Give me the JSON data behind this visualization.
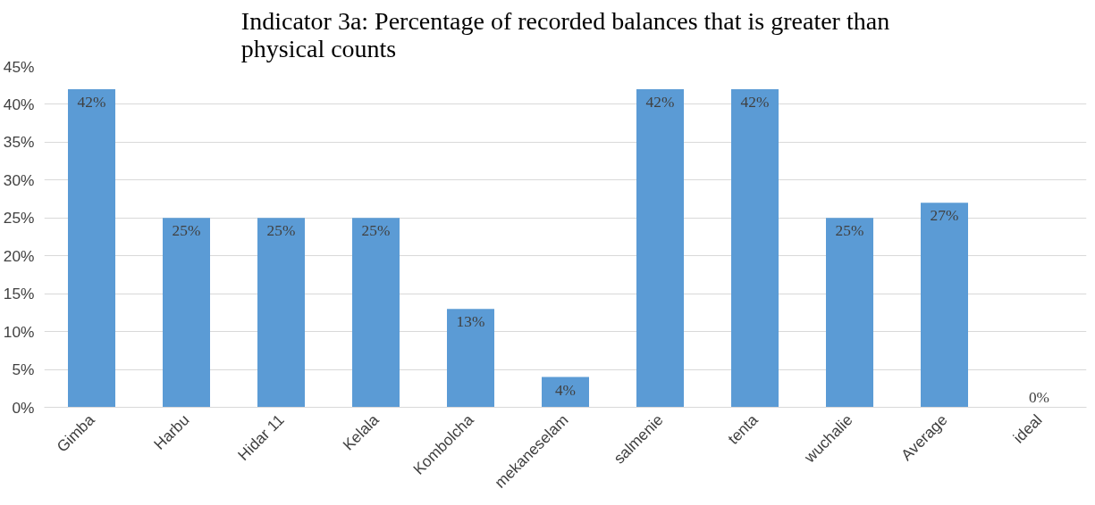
{
  "chart_data": {
    "type": "bar",
    "title": "Indicator 3a: Percentage of recorded balances that is greater than physical counts",
    "categories": [
      "Gimba",
      "Harbu",
      "Hidar 11",
      "Kelala",
      "Kombolcha",
      "mekaneselam",
      "salmenie",
      "tenta",
      "wuchalie",
      "Average",
      "ideal"
    ],
    "values": [
      42,
      25,
      25,
      25,
      13,
      4,
      42,
      42,
      25,
      27,
      0
    ],
    "value_labels": [
      "42%",
      "25%",
      "25%",
      "25%",
      "13%",
      "4%",
      "42%",
      "42%",
      "25%",
      "27%",
      "0%"
    ],
    "color": "#5b9bd5",
    "ylim": [
      0,
      45
    ],
    "yticks": [
      {
        "value": 0,
        "label": "0%"
      },
      {
        "value": 5,
        "label": "5%"
      },
      {
        "value": 10,
        "label": "10%"
      },
      {
        "value": 15,
        "label": "15%"
      },
      {
        "value": 20,
        "label": "20%"
      },
      {
        "value": 25,
        "label": "25%"
      },
      {
        "value": 30,
        "label": "30%"
      },
      {
        "value": 35,
        "label": "35%"
      },
      {
        "value": 40,
        "label": "40%"
      },
      {
        "value": 45,
        "label": "45%"
      }
    ],
    "grid": "y"
  }
}
